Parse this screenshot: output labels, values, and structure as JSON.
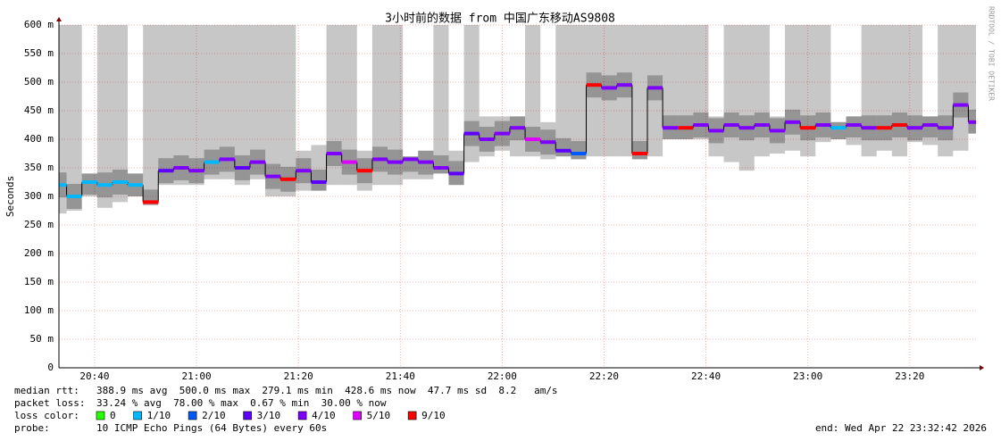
{
  "chart_data": {
    "type": "smokeping",
    "title": "3小时前的数据 from 中国广东移动AS9808",
    "y_label": "Seconds",
    "side_label": "RRDTOOL / TOBI OETIKER",
    "xlim": [
      "20:33",
      "23:33"
    ],
    "xticks": [
      "20:40",
      "21:00",
      "21:20",
      "21:40",
      "22:00",
      "22:20",
      "22:40",
      "23:00",
      "23:20"
    ],
    "ylim": [
      0,
      600
    ],
    "yticks": [
      0,
      {
        "value": 50,
        "label": "50 m"
      },
      {
        "value": 100,
        "label": "100 m"
      },
      {
        "value": 150,
        "label": "150 m"
      },
      {
        "value": 200,
        "label": "200 m"
      },
      {
        "value": 250,
        "label": "250 m"
      },
      {
        "value": 300,
        "label": "300 m"
      },
      {
        "value": 350,
        "label": "350 m"
      },
      {
        "value": 400,
        "label": "400 m"
      },
      {
        "value": 450,
        "label": "450 m"
      },
      {
        "value": 500,
        "label": "500 m"
      },
      {
        "value": 550,
        "label": "550 m"
      },
      {
        "value": 600,
        "label": "600 m"
      }
    ],
    "grid": true,
    "x": [
      "20:33",
      "20:36",
      "20:39",
      "20:42",
      "20:45",
      "20:48",
      "20:51",
      "20:54",
      "20:57",
      "21:00",
      "21:03",
      "21:06",
      "21:09",
      "21:12",
      "21:15",
      "21:18",
      "21:21",
      "21:24",
      "21:27",
      "21:30",
      "21:33",
      "21:36",
      "21:39",
      "21:42",
      "21:45",
      "21:48",
      "21:51",
      "21:54",
      "21:57",
      "22:00",
      "22:03",
      "22:06",
      "22:09",
      "22:12",
      "22:15",
      "22:18",
      "22:21",
      "22:24",
      "22:27",
      "22:30",
      "22:33",
      "22:36",
      "22:39",
      "22:42",
      "22:45",
      "22:48",
      "22:51",
      "22:54",
      "22:57",
      "23:00",
      "23:03",
      "23:06",
      "23:09",
      "23:12",
      "23:15",
      "23:18",
      "23:21",
      "23:24",
      "23:27",
      "23:30",
      "23:33"
    ],
    "median": [
      320,
      300,
      325,
      320,
      325,
      320,
      290,
      345,
      350,
      345,
      360,
      365,
      350,
      360,
      335,
      330,
      345,
      325,
      375,
      360,
      345,
      365,
      360,
      365,
      360,
      350,
      340,
      410,
      400,
      410,
      420,
      400,
      395,
      380,
      375,
      495,
      490,
      495,
      375,
      490,
      420,
      420,
      425,
      415,
      425,
      420,
      425,
      415,
      430,
      420,
      425,
      420,
      425,
      420,
      420,
      425,
      420,
      425,
      420,
      460,
      430
    ],
    "smoke_min": [
      270,
      275,
      300,
      280,
      290,
      300,
      285,
      320,
      320,
      320,
      330,
      330,
      320,
      330,
      300,
      300,
      310,
      310,
      320,
      320,
      310,
      320,
      320,
      330,
      330,
      340,
      320,
      360,
      370,
      380,
      370,
      370,
      365,
      370,
      365,
      370,
      370,
      370,
      365,
      370,
      400,
      400,
      400,
      370,
      360,
      345,
      370,
      375,
      380,
      370,
      395,
      400,
      390,
      370,
      380,
      370,
      395,
      390,
      370,
      380,
      410
    ],
    "smoke_max": [
      600,
      600,
      340,
      600,
      600,
      340,
      600,
      600,
      600,
      600,
      600,
      600,
      600,
      600,
      600,
      600,
      380,
      390,
      600,
      600,
      380,
      600,
      600,
      370,
      380,
      600,
      380,
      600,
      440,
      440,
      440,
      600,
      430,
      600,
      600,
      600,
      600,
      600,
      600,
      600,
      600,
      600,
      600,
      440,
      600,
      600,
      600,
      440,
      600,
      600,
      600,
      430,
      440,
      600,
      600,
      600,
      600,
      440,
      600,
      600,
      600
    ],
    "loss": [
      1,
      1,
      1,
      1,
      1,
      1,
      9,
      3,
      4,
      4,
      1,
      4,
      3,
      4,
      4,
      9,
      4,
      3,
      4,
      5,
      9,
      4,
      4,
      4,
      4,
      4,
      3,
      3,
      4,
      4,
      4,
      5,
      4,
      3,
      2,
      9,
      4,
      4,
      9,
      4,
      4,
      9,
      4,
      4,
      4,
      4,
      4,
      4,
      4,
      9,
      4,
      1,
      4,
      4,
      9,
      9,
      4,
      4,
      4,
      4,
      4
    ],
    "loss_legend_title": "loss color:",
    "loss_legend": [
      {
        "value": 0,
        "label": "0",
        "color": "#26ff00"
      },
      {
        "value": 1,
        "label": "1/10",
        "color": "#00b8ff"
      },
      {
        "value": 2,
        "label": "2/10",
        "color": "#0059ff"
      },
      {
        "value": 3,
        "label": "3/10",
        "color": "#5e00ff"
      },
      {
        "value": 4,
        "label": "4/10",
        "color": "#7e00ff"
      },
      {
        "value": 5,
        "label": "5/10",
        "color": "#dd00ff"
      },
      {
        "value": 9,
        "label": "9/10",
        "color": "#ff0000"
      }
    ],
    "stats": [
      {
        "label": "median rtt:",
        "text": "388.9 ms avg  500.0 ms max  279.1 ms min  428.6 ms now  47.7 ms sd  8.2   am/s"
      },
      {
        "label": "packet loss:",
        "text": "33.24 % avg  78.00 % max  0.67 % min  30.00 % now"
      }
    ],
    "probe_label": "probe:",
    "probe_text": "10 ICMP Echo Pings (64 Bytes) every 60s",
    "end_text": "end: Wed Apr 22 23:32:42 2026"
  }
}
